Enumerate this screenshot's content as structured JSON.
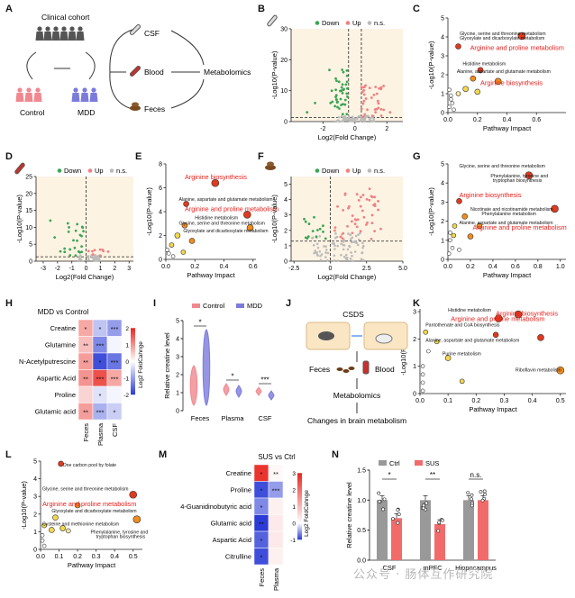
{
  "panels": {
    "A": {
      "letter": "A",
      "cohort": "Clinical cohort",
      "control": "Control",
      "mdd": "MDD",
      "csf": "CSF",
      "blood": "Blood",
      "feces": "Feces",
      "metabolomics": "Metabolomics"
    },
    "B": {
      "letter": "B"
    },
    "C": {
      "letter": "C"
    },
    "D": {
      "letter": "D"
    },
    "E": {
      "letter": "E"
    },
    "F": {
      "letter": "F"
    },
    "G": {
      "letter": "G"
    },
    "H": {
      "letter": "H",
      "title": "MDD vs Control",
      "colorbar_label": "Log2 FoldCahnge"
    },
    "I": {
      "letter": "I"
    },
    "J": {
      "letter": "J",
      "csds": "CSDS",
      "feces": "Feces",
      "blood": "Blood",
      "metabolomics": "Metabolomics",
      "changes": "Changes in brain metabolism"
    },
    "K": {
      "letter": "K"
    },
    "L": {
      "letter": "L"
    },
    "M": {
      "letter": "M",
      "title": "SUS vs Ctrl",
      "colorbar_label": "Log2 FoldCahnge"
    },
    "N": {
      "letter": "N"
    }
  },
  "volcano_legend": {
    "down": "Down",
    "up": "Up",
    "ns": "n.s."
  },
  "colors": {
    "down": "#3aa655",
    "up": "#f08080",
    "ns": "#bbbbbb",
    "panel_bg": "#fdf3e3",
    "red_text": "#e8201c",
    "control": "#f0888f",
    "mdd": "#7b7bdc",
    "ctrl_bar": "#999999",
    "sus_bar": "#f26b6b",
    "heat_pos": "#e8261f",
    "heat_neg": "#2a3bd6"
  },
  "watermark": "公众号 · 肠体互作研究院",
  "chart_data": [
    {
      "id": "B",
      "type": "scatter",
      "xlabel": "Log2(Fold Change)",
      "ylabel": "-Log10(P-value)",
      "xlim": [
        -4,
        3
      ],
      "ylim": [
        0,
        30
      ],
      "xticks": [
        "-2",
        "0",
        "2"
      ],
      "yticks": [
        "0",
        "10",
        "20",
        "30"
      ],
      "icon": "csf"
    },
    {
      "id": "C",
      "type": "scatter",
      "xlabel": "Pathway Impact",
      "ylabel": "-Log10(P-value)",
      "xlim": [
        0,
        0.8
      ],
      "ylim": [
        0,
        5
      ],
      "xticks": [
        "0.0",
        "0.2",
        "0.4",
        "0.6"
      ],
      "yticks": [
        "0",
        "1",
        "2",
        "3",
        "4",
        "5"
      ],
      "labels": [
        {
          "t": "Glycine, serine and threonine metabolism",
          "x": 0.08,
          "y": 4.1,
          "red": false
        },
        {
          "t": "Glyoxylate and dicarboxylate metabolism",
          "x": 0.08,
          "y": 3.85,
          "red": false
        },
        {
          "t": "Arginine and proline metabolism",
          "x": 0.15,
          "y": 3.3,
          "red": true
        },
        {
          "t": "Histidine metabolism",
          "x": 0.1,
          "y": 2.5,
          "red": false
        },
        {
          "t": "Alanine, aspartate and glutamate metabolism",
          "x": 0.06,
          "y": 2.1,
          "red": false
        },
        {
          "t": "Arginine biosynthesis",
          "x": 0.22,
          "y": 1.45,
          "red": true
        }
      ]
    },
    {
      "id": "D",
      "type": "scatter",
      "xlabel": "Log2(Fold Change)",
      "ylabel": "-Log10(P-value)",
      "xlim": [
        -3.5,
        3.3
      ],
      "ylim": [
        0,
        25
      ],
      "xticks": [
        "-3",
        "-2",
        "-1",
        "0",
        "1",
        "2",
        "3"
      ],
      "yticks": [
        "0",
        "5",
        "10",
        "15",
        "20",
        "25"
      ],
      "icon": "blood"
    },
    {
      "id": "E",
      "type": "scatter",
      "xlabel": "Pathway Impact",
      "ylabel": "-Log10(P-value)",
      "xlim": [
        0,
        0.62
      ],
      "ylim": [
        0,
        8
      ],
      "xticks": [
        "0.0",
        "0.2",
        "0.4",
        "0.6"
      ],
      "yticks": [
        "0",
        "2",
        "4",
        "6",
        "8"
      ],
      "labels": [
        {
          "t": "Arginine biosynthesis",
          "x": 0.13,
          "y": 6.7,
          "red": true
        },
        {
          "t": "Alanine, aspartate and glutamate metabolism",
          "x": 0.09,
          "y": 4.9,
          "red": false
        },
        {
          "t": "Arginine and proline metabolism",
          "x": 0.13,
          "y": 4.05,
          "red": true
        },
        {
          "t": "Histidine metabolism",
          "x": 0.2,
          "y": 3.35,
          "red": false
        },
        {
          "t": "Glycine, serine and threonine metabolism",
          "x": 0.09,
          "y": 2.9,
          "red": false
        },
        {
          "t": "Glyoxylate and dicarboxylate metabolism",
          "x": 0.12,
          "y": 2.25,
          "red": false
        }
      ]
    },
    {
      "id": "F",
      "type": "scatter",
      "xlabel": "Log2(Fold Change)",
      "ylabel": "-Log10(P-value)",
      "xlim": [
        -2.7,
        5
      ],
      "ylim": [
        0,
        5.5
      ],
      "xticks": [
        "-2.5",
        "0",
        "2.5",
        "5.0"
      ],
      "yticks": [
        "0",
        "1",
        "2",
        "3",
        "4",
        "5"
      ],
      "icon": "feces"
    },
    {
      "id": "G",
      "type": "scatter",
      "xlabel": "Pathway Impact",
      "ylabel": "-Log10(P-value)",
      "xlim": [
        0,
        1.05
      ],
      "ylim": [
        0,
        5
      ],
      "xticks": [
        "0.0",
        "0.2",
        "0.4",
        "0.6",
        "0.8",
        "1.0"
      ],
      "yticks": [
        "0",
        "1",
        "2",
        "3",
        "4",
        "5"
      ],
      "labels": [
        {
          "t": "Glycine, serine and threonine metabolism",
          "x": 0.1,
          "y": 4.8,
          "red": false
        },
        {
          "t": "Phenylalanine, tyrosine and",
          "x": 0.38,
          "y": 4.3,
          "red": false
        },
        {
          "t": "tryptophan biosynthesis",
          "x": 0.4,
          "y": 4.05,
          "red": false
        },
        {
          "t": "Arginine biosynthesis",
          "x": 0.1,
          "y": 3.25,
          "red": true
        },
        {
          "t": "Nicotinate and nicotinamide metabolism",
          "x": 0.2,
          "y": 2.55,
          "red": false
        },
        {
          "t": "Phenylalanine metabolism",
          "x": 0.3,
          "y": 2.3,
          "red": false
        },
        {
          "t": "Alanine, aspartate and glutamate metabolism",
          "x": 0.1,
          "y": 1.85,
          "red": false
        },
        {
          "t": "Arginine and proline metabolism",
          "x": 0.22,
          "y": 1.55,
          "red": true
        }
      ]
    },
    {
      "id": "H",
      "type": "heatmap",
      "rows": [
        "Creatine",
        "Glutamine",
        "N-Acetylputrescine",
        "Aspartic Acid",
        "Proline",
        "Glutamic acid"
      ],
      "cols": [
        "Feces",
        "Plasma",
        "CSF"
      ],
      "values": [
        [
          0.8,
          -0.6,
          -1.0
        ],
        [
          0.6,
          -1.2,
          -0.1
        ],
        [
          0.9,
          -1.8,
          -1.4
        ],
        [
          1.0,
          1.6,
          0.8
        ],
        [
          0.4,
          -0.3,
          -0.1
        ],
        [
          0.9,
          -0.8,
          -0.5
        ]
      ],
      "stars": [
        [
          "*",
          "*",
          "***"
        ],
        [
          "**",
          "***",
          ""
        ],
        [
          "**",
          "*",
          "***"
        ],
        [
          "**",
          "***",
          "***"
        ],
        [
          "",
          "*",
          ""
        ],
        [
          "**",
          "***",
          "*"
        ]
      ],
      "range": [
        -2,
        2
      ],
      "ticks": [
        "2",
        "1",
        "0",
        "-1",
        "-2"
      ]
    },
    {
      "id": "I",
      "type": "violin",
      "ylabel": "Relative creatine level",
      "groups": [
        "Feces",
        "Plasma",
        "CSF"
      ],
      "series": [
        "Control",
        "MDD"
      ],
      "ylim": [
        0,
        5
      ],
      "yticks": [
        "0",
        "1",
        "2",
        "3",
        "4",
        "5"
      ],
      "sig": [
        "*",
        "*",
        "***"
      ]
    },
    {
      "id": "K",
      "type": "scatter",
      "xlabel": "Pathway Impact",
      "ylabel": "-Log10(P-value)",
      "xlim": [
        0,
        0.52
      ],
      "ylim": [
        0,
        3.1
      ],
      "xticks": [
        "0.0",
        "0.1",
        "0.2",
        "0.3",
        "0.4",
        "0.5"
      ],
      "yticks": [
        "0",
        "1",
        "2",
        "3"
      ],
      "labels": [
        {
          "t": "Histidine metabolism",
          "x": 0.1,
          "y": 3.0,
          "red": false
        },
        {
          "t": "Arginine biosynthesis",
          "x": 0.27,
          "y": 2.85,
          "red": true
        },
        {
          "t": "Arginine and proline metabolism",
          "x": 0.11,
          "y": 2.65,
          "red": true
        },
        {
          "t": "Pantothenate and CoA biosynthesis",
          "x": 0.02,
          "y": 2.45,
          "red": false
        },
        {
          "t": "Alanine, aspartate and glutamate metabolism",
          "x": 0.02,
          "y": 1.9,
          "red": false
        },
        {
          "t": "Purine metabolism",
          "x": 0.08,
          "y": 1.4,
          "red": false
        },
        {
          "t": "Riboflavin metabolism",
          "x": 0.34,
          "y": 0.8,
          "red": false
        }
      ]
    },
    {
      "id": "L",
      "type": "scatter",
      "xlabel": "Pathway Impact",
      "ylabel": "-Log10(P-value)",
      "xlim": [
        0,
        0.55
      ],
      "ylim": [
        0,
        5
      ],
      "xticks": [
        "0.0",
        "0.1",
        "0.2",
        "0.3",
        "0.4",
        "0.5"
      ],
      "yticks": [
        "0",
        "1",
        "2",
        "3",
        "4",
        "5"
      ],
      "labels": [
        {
          "t": "One carbon pool by folate",
          "x": 0.12,
          "y": 4.7,
          "red": false
        },
        {
          "t": "Glycine, serine and threonine metabolism",
          "x": 0.01,
          "y": 3.35,
          "red": false
        },
        {
          "t": "Arginine and proline metabolism",
          "x": 0.01,
          "y": 2.45,
          "red": true
        },
        {
          "t": "Glyoxylate and dicarboxylate metabolism",
          "x": 0.06,
          "y": 2.1,
          "red": false
        },
        {
          "t": "Cysteine and methionine metabolism",
          "x": 0.01,
          "y": 1.35,
          "red": false
        },
        {
          "t": "Phenylalanine, tyrosine and",
          "x": 0.27,
          "y": 0.9,
          "red": false
        },
        {
          "t": "tryptophan biosynthesis",
          "x": 0.3,
          "y": 0.65,
          "red": false
        }
      ]
    },
    {
      "id": "M",
      "type": "heatmap",
      "rows": [
        "Creatine",
        "Proline",
        "4-Guanidinobutyric acid",
        "Glutamic acid",
        "Aspartic Acid",
        "Citrulline"
      ],
      "cols": [
        "Feces",
        "Plasma"
      ],
      "values": [
        [
          2.8,
          0.1
        ],
        [
          -0.9,
          -0.5
        ],
        [
          -0.6,
          0.2
        ],
        [
          -1.0,
          0.3
        ],
        [
          -0.8,
          0.3
        ],
        [
          -0.9,
          0.2
        ]
      ],
      "stars": [
        [
          "*",
          "**"
        ],
        [
          "*",
          "***"
        ],
        [
          "*",
          ""
        ],
        [
          "**",
          ""
        ],
        [
          "*",
          ""
        ],
        [
          "*",
          ""
        ]
      ],
      "range": [
        -1,
        3
      ],
      "ticks": [
        "3",
        "2",
        "1",
        "0",
        "-1"
      ]
    },
    {
      "id": "N",
      "type": "bar",
      "ylabel": "Relative creatine level",
      "categories": [
        "CSF",
        "mPFC",
        "Hippocampus"
      ],
      "series": [
        {
          "name": "Ctrl",
          "values": [
            1.0,
            1.0,
            1.0
          ]
        },
        {
          "name": "SUS",
          "values": [
            0.7,
            0.6,
            1.0
          ]
        }
      ],
      "ylim": [
        0,
        1.5
      ],
      "yticks": [
        "0.0",
        "0.5",
        "1.0",
        "1.5"
      ],
      "sig": [
        "*",
        "**",
        "n.s."
      ]
    }
  ]
}
